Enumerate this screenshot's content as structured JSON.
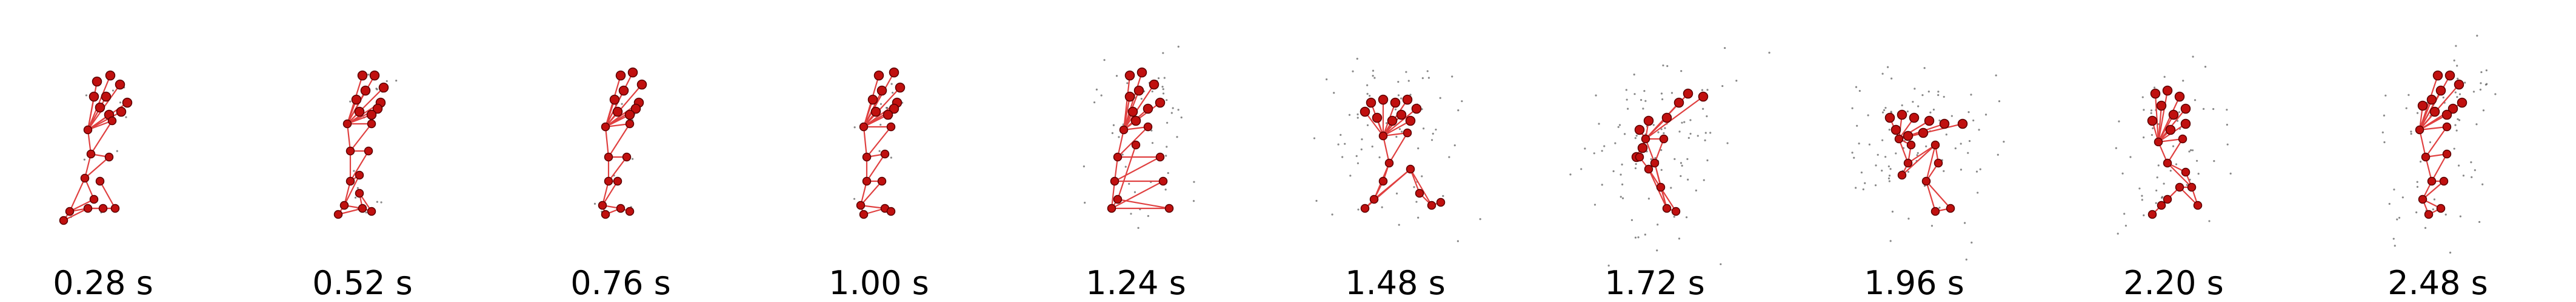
{
  "frames": [
    {
      "time": "0.28 s"
    },
    {
      "time": "0.52 s"
    },
    {
      "time": "0.76 s"
    },
    {
      "time": "1.00 s"
    },
    {
      "time": "1.24 s"
    },
    {
      "time": "1.48 s"
    },
    {
      "time": "1.72 s"
    },
    {
      "time": "1.96 s"
    },
    {
      "time": "2.20 s"
    },
    {
      "time": "2.48 s"
    }
  ],
  "colors": {
    "joint_fill": "#c0100f",
    "joint_stroke": "#5a0000",
    "bone": "#e04040",
    "point_cloud": "#555555",
    "label": "#000000"
  }
}
